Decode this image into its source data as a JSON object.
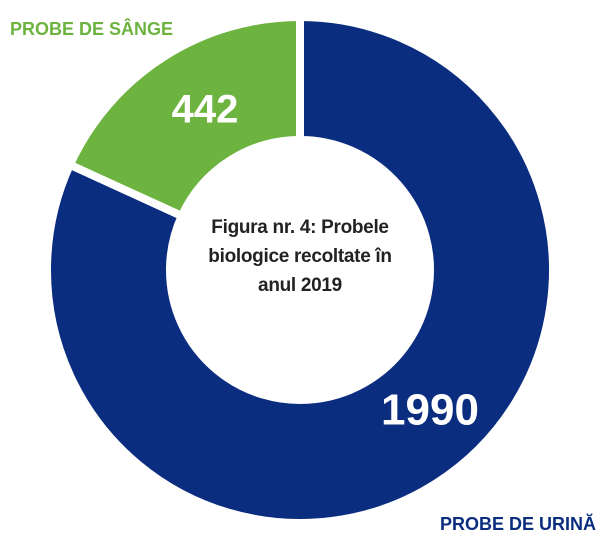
{
  "chart_data": {
    "type": "donut",
    "title": "Figura nr. 4: Probele biologice recoltate în anul 2019",
    "categories": [
      "PROBE DE URINĂ",
      "PROBE DE SÂNGE"
    ],
    "values": [
      1990,
      442
    ],
    "colors": [
      "#0a2d7f",
      "#6db33f"
    ]
  }
}
